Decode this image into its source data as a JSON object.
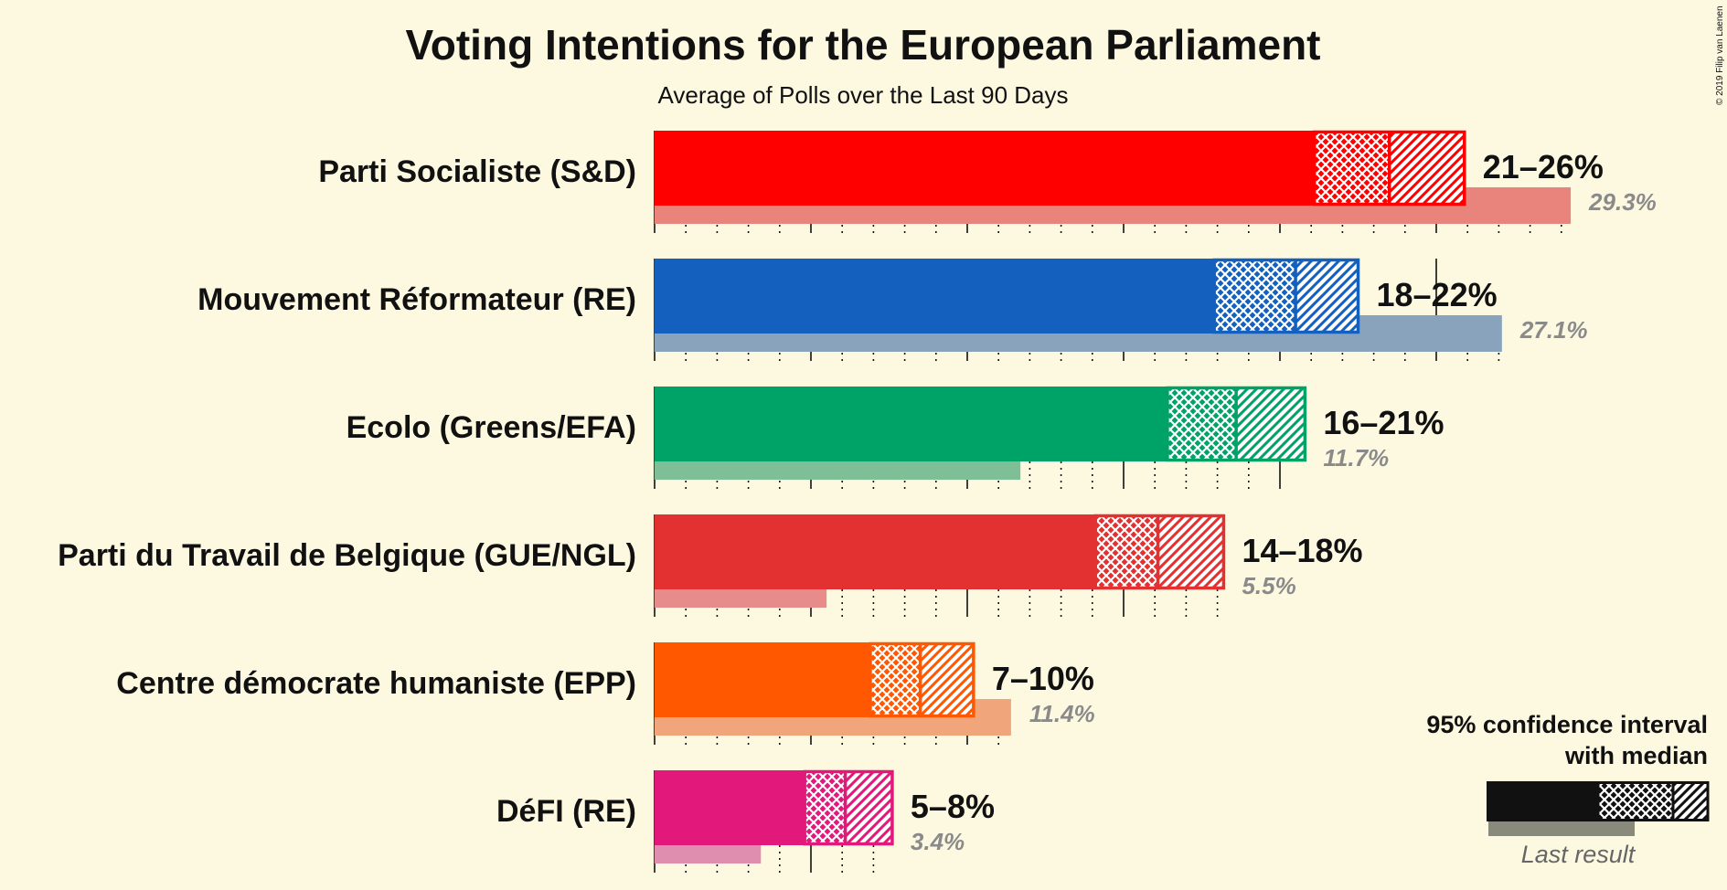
{
  "chart_data": {
    "type": "bar",
    "orientation": "horizontal",
    "title": "Voting Intentions for the European Parliament",
    "subtitle": "Average of Polls over the Last 90 Days",
    "xlim": [
      0,
      30
    ],
    "categories": [
      "Parti Socialiste (S&D)",
      "Mouvement Réformateur (RE)",
      "Ecolo (Greens/EFA)",
      "Parti du Travail de Belgique (GUE/NGL)",
      "Centre démocrate humaniste (EPP)",
      "DéFI (RE)"
    ],
    "series": [
      {
        "name": "95% confidence interval",
        "ci_low": [
          21.1,
          17.9,
          16.4,
          14.1,
          6.9,
          4.8
        ],
        "median": [
          23.5,
          20.5,
          18.6,
          16.1,
          8.5,
          6.1
        ],
        "ci_high": [
          25.9,
          22.5,
          20.8,
          18.2,
          10.2,
          7.6
        ],
        "labels": [
          "21–26%",
          "18–22%",
          "16–21%",
          "14–18%",
          "7–10%",
          "5–8%"
        ]
      },
      {
        "name": "Last result",
        "values": [
          29.3,
          27.1,
          11.7,
          5.5,
          11.4,
          3.4
        ],
        "labels": [
          "29.3%",
          "27.1%",
          "11.7%",
          "5.5%",
          "11.4%",
          "3.4%"
        ]
      }
    ],
    "colors": [
      "#ff0000",
      "#1460be",
      "#00a367",
      "#e33030",
      "#ff5800",
      "#e2197b"
    ],
    "last_colors": [
      "#e8847c",
      "#8aa3bd",
      "#7ebf97",
      "#e88b8b",
      "#f0a57b",
      "#e08eb0"
    ],
    "legend": {
      "placement": "bottom-right",
      "line1": "95% confidence interval",
      "line2": "with median",
      "last_label": "Last result"
    },
    "copyright": "© 2019 Filip van Laenen"
  }
}
